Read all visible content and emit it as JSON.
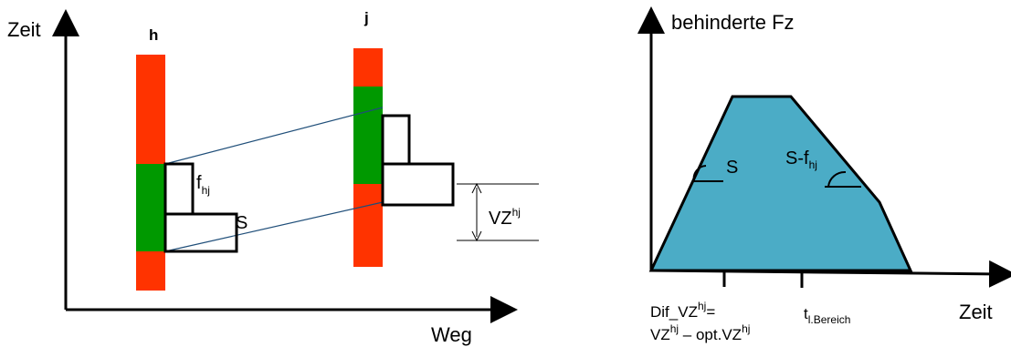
{
  "left_diagram": {
    "y_axis_label": "Zeit",
    "x_axis_label": "Weg",
    "signal_h_label": "h",
    "signal_j_label": "j",
    "f_label": "f",
    "f_subscript": "hj",
    "s_label": "S",
    "vz_label": "VZ",
    "vz_superscript": "hj"
  },
  "right_diagram": {
    "y_axis_label": "behinderte Fz",
    "x_axis_label": "Zeit",
    "angle_s_label": "S",
    "angle_sf_label": "S-f",
    "angle_sf_subscript": "hj",
    "tick1_line1_prefix": "Dif_VZ",
    "tick1_line1_sup": "hj",
    "tick1_line1_suffix": "=",
    "tick1_line2_a": "VZ",
    "tick1_line2_sup1": "hj",
    "tick1_line2_b": " – opt.VZ",
    "tick1_line2_sup2": "hj",
    "tick2_label": "t",
    "tick2_subscript": "l.Bereich"
  },
  "colors": {
    "red": "#ff3300",
    "green": "#009900",
    "blue_line": "#1f4e79",
    "fill_area": "#4bacc6"
  }
}
